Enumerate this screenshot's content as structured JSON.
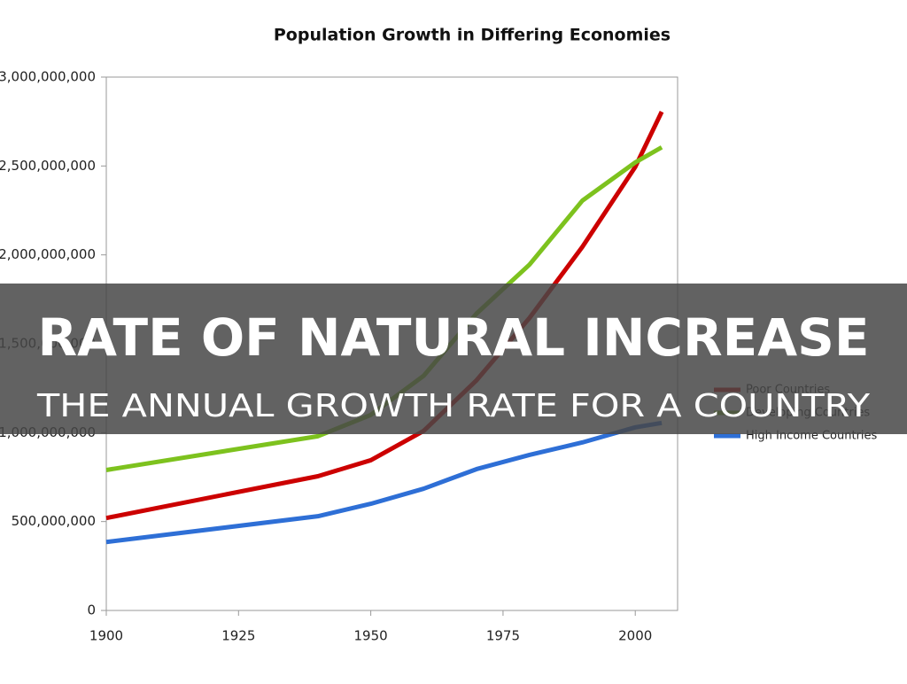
{
  "chart_data": {
    "type": "line",
    "title": "Population Growth in Differing Economies",
    "x": [
      1900,
      1940,
      1950,
      1960,
      1970,
      1980,
      1990,
      2000,
      2005
    ],
    "series": [
      {
        "name": "Poor Countries",
        "color": "#cc0000",
        "values": [
          520000000,
          755000000,
          845000000,
          1010000000,
          1295000000,
          1645000000,
          2045000000,
          2495000000,
          2805000000
        ]
      },
      {
        "name": "Developing Countries",
        "color": "#7dc21e",
        "values": [
          790000000,
          980000000,
          1100000000,
          1320000000,
          1670000000,
          1945000000,
          2305000000,
          2520000000,
          2605000000
        ]
      },
      {
        "name": "High Income Countries",
        "color": "#2e6fd6",
        "values": [
          385000000,
          530000000,
          600000000,
          685000000,
          795000000,
          875000000,
          945000000,
          1030000000,
          1055000000
        ]
      }
    ],
    "xlim": [
      1900,
      2008
    ],
    "xticks": [
      1900,
      1925,
      1950,
      1975,
      2000
    ],
    "ylim": [
      0,
      3000000000
    ],
    "yticks": [
      0,
      {
        "value": 500000000,
        "label": "500,000,000"
      },
      {
        "value": 1000000000,
        "label": "1,000,000,000"
      },
      {
        "value": 1500000000,
        "label": "1,500,000,000"
      },
      {
        "value": 2000000000,
        "label": "2,000,000,000"
      },
      {
        "value": 2500000000,
        "label": "2,500,000,000"
      },
      {
        "value": 3000000000,
        "label": "3,000,000,000"
      }
    ],
    "grid": false,
    "legend": "right"
  },
  "overlay": {
    "heading": "RATE OF NATURAL INCREASE",
    "subheading": "THE ANNUAL GROWTH RATE FOR A COUNTRY"
  }
}
